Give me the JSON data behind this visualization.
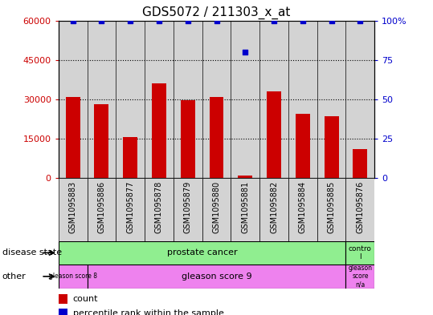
{
  "title": "GDS5072 / 211303_x_at",
  "samples": [
    "GSM1095883",
    "GSM1095886",
    "GSM1095877",
    "GSM1095878",
    "GSM1095879",
    "GSM1095880",
    "GSM1095881",
    "GSM1095882",
    "GSM1095884",
    "GSM1095885",
    "GSM1095876"
  ],
  "counts": [
    31000,
    28000,
    15500,
    36000,
    29500,
    31000,
    800,
    33000,
    24500,
    23500,
    11000
  ],
  "percentile_ranks": [
    100,
    100,
    100,
    100,
    100,
    100,
    80,
    100,
    100,
    100,
    100
  ],
  "ylim_left": [
    0,
    60000
  ],
  "ylim_right": [
    0,
    100
  ],
  "yticks_left": [
    0,
    15000,
    30000,
    45000,
    60000
  ],
  "ytick_labels_left": [
    "0",
    "15000",
    "30000",
    "45000",
    "60000"
  ],
  "yticks_right": [
    0,
    25,
    50,
    75,
    100
  ],
  "ytick_labels_right": [
    "0",
    "25",
    "50",
    "75",
    "100%"
  ],
  "bar_color": "#cc0000",
  "dot_color": "#0000cc",
  "bar_width": 0.5,
  "bg_color": "#ffffff",
  "tick_label_color_left": "#cc0000",
  "tick_label_color_right": "#0000cc",
  "col_bg_color": "#d3d3d3",
  "ds_green": "#90ee90",
  "ot_violet": "#ee82ee"
}
